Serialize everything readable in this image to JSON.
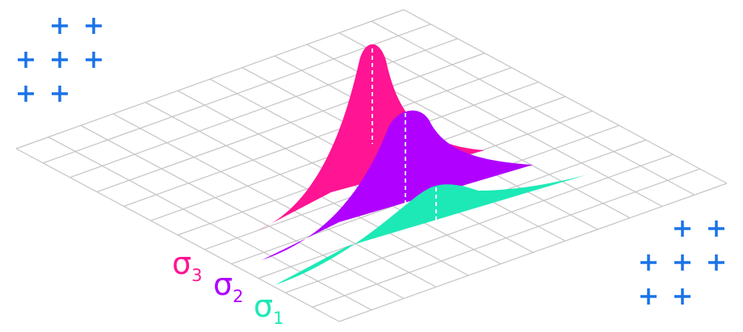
{
  "background": "#ffffff",
  "plus_color": "#1a73e8",
  "grid_color": "#c4c4c4",
  "curves": [
    {
      "name": "σ3",
      "symbol": "σ",
      "subscript": "3",
      "color": "#ff1493"
    },
    {
      "name": "σ2",
      "symbol": "σ",
      "subscript": "2",
      "color": "#b000ff"
    },
    {
      "name": "σ1",
      "symbol": "σ",
      "subscript": "1",
      "color": "#1de9b6"
    }
  ],
  "plus_clusters": [
    {
      "name": "top-left",
      "rows": [
        2,
        3,
        2
      ]
    },
    {
      "name": "bottom-right",
      "rows": [
        2,
        3,
        2
      ]
    }
  ]
}
